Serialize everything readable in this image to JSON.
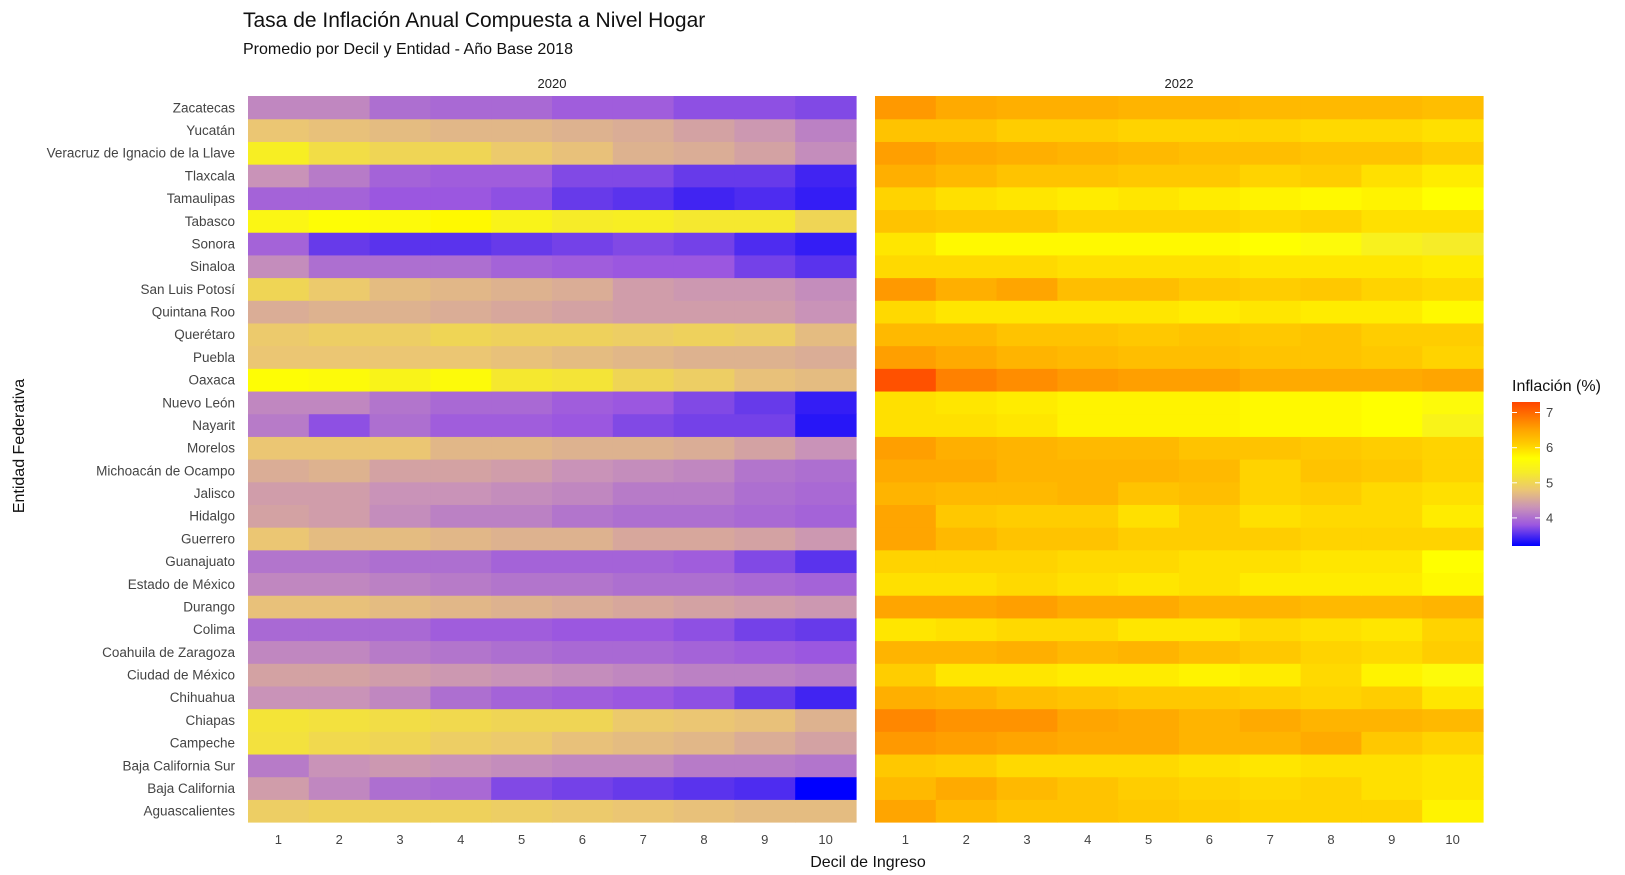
{
  "chart_data": {
    "type": "heatmap",
    "title": "Tasa de Inflación Anual Compuesta a Nivel Hogar",
    "subtitle": "Promedio por Decil y Entidad - Año Base 2018",
    "xlabel": "Decil de Ingreso",
    "ylabel": "Entidad Federativa",
    "legend": {
      "title": "Inflación (%)",
      "position": "right",
      "ticks": [
        4,
        5,
        6,
        7
      ],
      "range": [
        3.2,
        7.3
      ],
      "color_stops": [
        {
          "value": 3.2,
          "color": "#0000ff"
        },
        {
          "value": 3.8,
          "color": "#9b57e0"
        },
        {
          "value": 4.3,
          "color": "#c993b8"
        },
        {
          "value": 4.8,
          "color": "#ebc673"
        },
        {
          "value": 5.3,
          "color": "#f6ec28"
        },
        {
          "value": 5.7,
          "color": "#ffff00"
        },
        {
          "value": 6.1,
          "color": "#ffcd00"
        },
        {
          "value": 6.5,
          "color": "#ffa500"
        },
        {
          "value": 7.3,
          "color": "#ff4500"
        }
      ]
    },
    "x": [
      "1",
      "2",
      "3",
      "4",
      "5",
      "6",
      "7",
      "8",
      "9",
      "10"
    ],
    "y": [
      "Aguascalientes",
      "Baja California",
      "Baja California Sur",
      "Campeche",
      "Chiapas",
      "Chihuahua",
      "Ciudad de México",
      "Coahuila de Zaragoza",
      "Colima",
      "Durango",
      "Estado de México",
      "Guanajuato",
      "Guerrero",
      "Hidalgo",
      "Jalisco",
      "Michoacán de Ocampo",
      "Morelos",
      "Nayarit",
      "Nuevo León",
      "Oaxaca",
      "Puebla",
      "Querétaro",
      "Quintana Roo",
      "San Luis Potosí",
      "Sinaloa",
      "Sonora",
      "Tabasco",
      "Tamaulipas",
      "Tlaxcala",
      "Veracruz de Ignacio de la Llave",
      "Yucatán",
      "Zacatecas"
    ],
    "panels": [
      {
        "label": "2020",
        "values": [
          [
            4.9,
            4.95,
            4.95,
            4.95,
            4.9,
            4.85,
            4.8,
            4.75,
            4.7,
            4.7
          ],
          [
            4.4,
            4.2,
            4.0,
            3.95,
            3.7,
            3.65,
            3.6,
            3.55,
            3.5,
            3.2
          ],
          [
            4.1,
            4.3,
            4.35,
            4.3,
            4.25,
            4.2,
            4.2,
            4.1,
            4.1,
            4.05
          ],
          [
            5.15,
            5.05,
            5.0,
            4.9,
            4.85,
            4.75,
            4.7,
            4.65,
            4.55,
            4.45
          ],
          [
            5.2,
            5.15,
            5.1,
            5.05,
            5.0,
            5.0,
            4.85,
            4.8,
            4.75,
            4.6
          ],
          [
            4.3,
            4.3,
            4.2,
            4.0,
            3.9,
            3.85,
            3.8,
            3.75,
            3.6,
            3.45
          ],
          [
            4.45,
            4.45,
            4.4,
            4.35,
            4.3,
            4.25,
            4.2,
            4.15,
            4.15,
            4.1
          ],
          [
            4.2,
            4.2,
            4.1,
            4.05,
            4.0,
            3.95,
            3.95,
            3.9,
            3.85,
            3.8
          ],
          [
            3.95,
            3.95,
            3.95,
            3.85,
            3.85,
            3.8,
            3.8,
            3.75,
            3.65,
            3.6
          ],
          [
            4.75,
            4.75,
            4.7,
            4.65,
            4.6,
            4.55,
            4.5,
            4.45,
            4.4,
            4.35
          ],
          [
            4.2,
            4.2,
            4.15,
            4.1,
            4.05,
            4.05,
            4.0,
            4.0,
            3.95,
            3.9
          ],
          [
            4.05,
            4.05,
            4.0,
            4.0,
            3.9,
            3.9,
            3.9,
            3.85,
            3.7,
            3.55
          ],
          [
            4.8,
            4.7,
            4.7,
            4.65,
            4.6,
            4.6,
            4.5,
            4.5,
            4.45,
            4.35
          ],
          [
            4.45,
            4.4,
            4.25,
            4.15,
            4.15,
            4.05,
            4.0,
            4.0,
            3.95,
            3.9
          ],
          [
            4.4,
            4.4,
            4.3,
            4.3,
            4.25,
            4.2,
            4.1,
            4.1,
            4.0,
            3.95
          ],
          [
            4.55,
            4.6,
            4.45,
            4.45,
            4.4,
            4.3,
            4.25,
            4.2,
            4.05,
            4.0
          ],
          [
            4.8,
            4.8,
            4.8,
            4.65,
            4.65,
            4.6,
            4.6,
            4.55,
            4.45,
            4.3
          ],
          [
            4.1,
            3.75,
            4.0,
            3.85,
            3.85,
            3.8,
            3.7,
            3.65,
            3.65,
            3.35
          ],
          [
            4.2,
            4.2,
            4.05,
            3.95,
            3.95,
            3.85,
            3.8,
            3.7,
            3.6,
            3.4
          ],
          [
            5.65,
            5.6,
            5.45,
            5.6,
            5.25,
            5.2,
            5.0,
            4.9,
            4.75,
            4.7
          ],
          [
            4.8,
            4.8,
            4.8,
            4.8,
            4.75,
            4.7,
            4.65,
            4.6,
            4.6,
            4.55
          ],
          [
            4.85,
            4.9,
            4.9,
            5.0,
            4.95,
            4.95,
            4.9,
            4.95,
            4.9,
            4.7
          ],
          [
            4.55,
            4.6,
            4.6,
            4.55,
            4.5,
            4.45,
            4.4,
            4.4,
            4.4,
            4.3
          ],
          [
            5.0,
            4.85,
            4.7,
            4.65,
            4.6,
            4.55,
            4.4,
            4.35,
            4.35,
            4.25
          ],
          [
            4.25,
            4.0,
            4.0,
            4.0,
            3.9,
            3.85,
            3.8,
            3.8,
            3.65,
            3.55
          ],
          [
            3.9,
            3.6,
            3.55,
            3.55,
            3.6,
            3.65,
            3.7,
            3.65,
            3.5,
            3.4
          ],
          [
            5.5,
            5.65,
            5.6,
            5.75,
            5.45,
            5.3,
            5.35,
            5.25,
            5.25,
            5.0
          ],
          [
            3.9,
            3.9,
            3.8,
            3.8,
            3.75,
            3.6,
            3.55,
            3.45,
            3.5,
            3.4
          ],
          [
            4.3,
            4.1,
            3.9,
            3.85,
            3.85,
            3.7,
            3.7,
            3.6,
            3.6,
            3.45
          ],
          [
            5.35,
            5.1,
            5.0,
            5.0,
            4.85,
            4.75,
            4.6,
            4.55,
            4.45,
            4.25
          ],
          [
            4.8,
            4.75,
            4.7,
            4.65,
            4.65,
            4.6,
            4.55,
            4.45,
            4.35,
            4.15
          ],
          [
            4.2,
            4.2,
            4.0,
            3.95,
            3.95,
            3.85,
            3.85,
            3.75,
            3.75,
            3.7
          ]
        ]
      },
      {
        "label": "2022",
        "values": [
          [
            6.5,
            6.3,
            6.2,
            6.2,
            6.15,
            6.1,
            6.05,
            6.05,
            6.05,
            5.8
          ],
          [
            6.3,
            6.45,
            6.3,
            6.2,
            6.1,
            6.05,
            6.0,
            6.05,
            5.95,
            5.9
          ],
          [
            6.15,
            6.1,
            6.0,
            6.0,
            6.0,
            5.95,
            5.9,
            5.95,
            5.95,
            5.9
          ],
          [
            6.6,
            6.55,
            6.5,
            6.45,
            6.45,
            6.35,
            6.35,
            6.45,
            6.15,
            6.05
          ],
          [
            6.75,
            6.65,
            6.65,
            6.5,
            6.45,
            6.35,
            6.45,
            6.35,
            6.35,
            6.3
          ],
          [
            6.4,
            6.35,
            6.25,
            6.2,
            6.15,
            6.15,
            6.1,
            6.05,
            6.1,
            5.9
          ],
          [
            6.1,
            5.9,
            5.9,
            5.85,
            5.85,
            5.8,
            5.85,
            6.0,
            5.8,
            5.6
          ],
          [
            6.35,
            6.35,
            6.4,
            6.3,
            6.35,
            6.25,
            6.15,
            6.05,
            6.0,
            6.1
          ],
          [
            5.9,
            5.95,
            6.0,
            6.0,
            5.9,
            5.9,
            6.0,
            5.95,
            5.9,
            6.05
          ],
          [
            6.5,
            6.5,
            6.55,
            6.45,
            6.45,
            6.35,
            6.35,
            6.3,
            6.3,
            6.35
          ],
          [
            5.95,
            5.95,
            6.0,
            5.95,
            5.9,
            5.95,
            5.85,
            5.85,
            5.85,
            5.75
          ],
          [
            6.05,
            6.05,
            6.05,
            6.0,
            6.0,
            5.95,
            5.95,
            5.9,
            5.9,
            5.7
          ],
          [
            6.5,
            6.3,
            6.2,
            6.2,
            6.1,
            6.1,
            6.1,
            6.05,
            6.05,
            6.05
          ],
          [
            6.5,
            6.15,
            6.1,
            6.1,
            5.95,
            6.1,
            5.95,
            6.0,
            6.0,
            5.85
          ],
          [
            6.35,
            6.3,
            6.3,
            6.35,
            6.2,
            6.25,
            6.05,
            6.1,
            6.0,
            5.95
          ],
          [
            6.45,
            6.45,
            6.35,
            6.35,
            6.35,
            6.3,
            6.05,
            6.2,
            6.15,
            6.05
          ],
          [
            6.55,
            6.4,
            6.35,
            6.3,
            6.3,
            6.2,
            6.2,
            6.15,
            6.1,
            6.05
          ],
          [
            5.95,
            5.95,
            5.9,
            5.8,
            5.8,
            5.8,
            5.75,
            5.75,
            5.7,
            5.45
          ],
          [
            5.95,
            5.9,
            5.85,
            5.8,
            5.8,
            5.8,
            5.75,
            5.75,
            5.7,
            5.6
          ],
          [
            7.2,
            6.8,
            6.7,
            6.6,
            6.55,
            6.55,
            6.45,
            6.45,
            6.45,
            6.5
          ],
          [
            6.55,
            6.45,
            6.35,
            6.3,
            6.25,
            6.25,
            6.2,
            6.2,
            6.15,
            6.05
          ],
          [
            6.3,
            6.3,
            6.2,
            6.2,
            6.15,
            6.2,
            6.15,
            6.2,
            6.1,
            6.1
          ],
          [
            6.0,
            5.9,
            5.9,
            5.9,
            5.9,
            5.85,
            5.9,
            5.85,
            5.85,
            5.75
          ],
          [
            6.6,
            6.4,
            6.5,
            6.25,
            6.25,
            6.15,
            6.1,
            6.15,
            6.05,
            6.0
          ],
          [
            6.0,
            6.0,
            6.0,
            5.95,
            5.95,
            5.95,
            5.9,
            5.9,
            5.9,
            5.85
          ],
          [
            5.9,
            5.75,
            5.75,
            5.75,
            5.75,
            5.75,
            5.7,
            5.6,
            5.4,
            5.3
          ],
          [
            6.2,
            6.15,
            6.15,
            6.05,
            6.05,
            6.05,
            6.0,
            6.05,
            5.95,
            5.95
          ],
          [
            6.05,
            5.95,
            5.9,
            5.85,
            5.9,
            5.85,
            5.8,
            5.75,
            5.8,
            5.7
          ],
          [
            6.4,
            6.3,
            6.2,
            6.2,
            6.15,
            6.15,
            6.05,
            6.1,
            5.95,
            5.85
          ],
          [
            6.55,
            6.45,
            6.4,
            6.35,
            6.3,
            6.25,
            6.25,
            6.2,
            6.2,
            6.1
          ],
          [
            6.2,
            6.2,
            6.1,
            6.1,
            6.05,
            6.05,
            6.05,
            6.0,
            6.0,
            5.95
          ],
          [
            6.6,
            6.45,
            6.4,
            6.4,
            6.35,
            6.35,
            6.3,
            6.3,
            6.3,
            6.25
          ]
        ]
      }
    ]
  }
}
